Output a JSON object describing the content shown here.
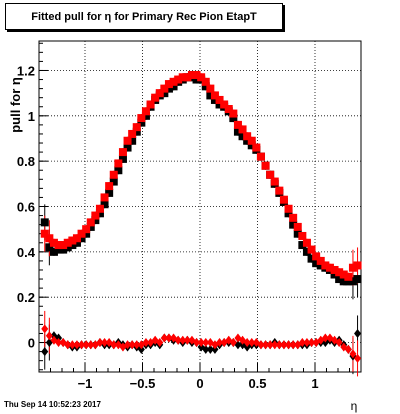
{
  "title": "Fitted pull for  η for Primary Rec Pion EtapT",
  "footer": "Thu Sep 14 10:52:23 2017",
  "chart_data": {
    "type": "scatter",
    "title": "Fitted pull for  η for Primary Rec Pion EtapT",
    "xlabel": "η",
    "ylabel": "pull for  η",
    "xlim": [
      -1.4,
      1.4
    ],
    "ylim": [
      -0.13,
      1.33
    ],
    "xticks": [
      -1,
      -0.5,
      0,
      0.5,
      1
    ],
    "xtick_labels": [
      "−1",
      "−0.5",
      "0",
      "0.5",
      "1"
    ],
    "yticks": [
      0,
      0.2,
      0.4,
      0.6,
      0.8,
      1,
      1.2
    ],
    "ytick_labels": [
      "0",
      "0.2",
      "0.4",
      "0.6",
      "0.8",
      "1",
      "1.2"
    ],
    "grid": true,
    "legend": "none",
    "x": [
      -1.35,
      -1.31,
      -1.27,
      -1.23,
      -1.19,
      -1.15,
      -1.11,
      -1.07,
      -1.03,
      -0.99,
      -0.95,
      -0.91,
      -0.87,
      -0.83,
      -0.79,
      -0.75,
      -0.71,
      -0.67,
      -0.63,
      -0.59,
      -0.55,
      -0.51,
      -0.47,
      -0.43,
      -0.39,
      -0.35,
      -0.31,
      -0.27,
      -0.23,
      -0.19,
      -0.15,
      -0.11,
      -0.07,
      -0.03,
      0.01,
      0.05,
      0.09,
      0.13,
      0.17,
      0.21,
      0.25,
      0.29,
      0.33,
      0.37,
      0.41,
      0.45,
      0.49,
      0.53,
      0.57,
      0.61,
      0.65,
      0.69,
      0.73,
      0.77,
      0.81,
      0.85,
      0.89,
      0.93,
      0.97,
      1.01,
      1.05,
      1.09,
      1.13,
      1.17,
      1.21,
      1.25,
      1.29,
      1.33,
      1.37
    ],
    "series": [
      {
        "color": "#000000",
        "marker": "square",
        "values": [
          0.53,
          0.42,
          0.4,
          0.41,
          0.41,
          0.42,
          0.43,
          0.44,
          0.46,
          0.48,
          0.51,
          0.54,
          0.57,
          0.61,
          0.66,
          0.71,
          0.76,
          0.81,
          0.86,
          0.89,
          0.93,
          0.97,
          1.0,
          1.04,
          1.07,
          1.09,
          1.1,
          1.12,
          1.13,
          1.15,
          1.16,
          1.17,
          1.17,
          1.16,
          1.16,
          1.13,
          1.09,
          1.07,
          1.05,
          1.04,
          1.02,
          0.99,
          0.93,
          0.91,
          0.89,
          0.87,
          0.85,
          0.82,
          0.78,
          0.74,
          0.7,
          0.66,
          0.62,
          0.57,
          0.52,
          0.48,
          0.43,
          0.4,
          0.37,
          0.35,
          0.34,
          0.33,
          0.32,
          0.3,
          0.28,
          0.27,
          0.27,
          0.27,
          0.28
        ]
      },
      {
        "color": "#ff0000",
        "marker": "square",
        "values": [
          0.48,
          0.46,
          0.44,
          0.43,
          0.43,
          0.44,
          0.45,
          0.46,
          0.48,
          0.5,
          0.53,
          0.56,
          0.59,
          0.64,
          0.69,
          0.74,
          0.79,
          0.84,
          0.89,
          0.92,
          0.95,
          0.99,
          1.02,
          1.05,
          1.08,
          1.1,
          1.12,
          1.14,
          1.15,
          1.16,
          1.17,
          1.17,
          1.18,
          1.18,
          1.17,
          1.15,
          1.12,
          1.09,
          1.07,
          1.05,
          1.03,
          1.01,
          0.96,
          0.94,
          0.91,
          0.89,
          0.86,
          0.82,
          0.78,
          0.74,
          0.71,
          0.67,
          0.63,
          0.59,
          0.55,
          0.51,
          0.47,
          0.44,
          0.41,
          0.38,
          0.36,
          0.34,
          0.33,
          0.32,
          0.31,
          0.3,
          0.29,
          0.33,
          0.34
        ]
      },
      {
        "color": "#000000",
        "marker": "diamond",
        "values": [
          -0.04,
          0.0,
          0.03,
          0.02,
          0.0,
          -0.01,
          -0.02,
          -0.02,
          -0.01,
          -0.01,
          -0.01,
          -0.01,
          0.0,
          -0.01,
          -0.01,
          -0.01,
          0.0,
          -0.01,
          -0.02,
          -0.01,
          -0.02,
          -0.03,
          -0.01,
          -0.01,
          0.0,
          -0.01,
          0.02,
          0.02,
          0.01,
          0.01,
          0.0,
          0.01,
          0.0,
          0.0,
          -0.02,
          -0.03,
          -0.03,
          -0.03,
          -0.01,
          0.0,
          0.0,
          0.0,
          -0.01,
          -0.01,
          -0.02,
          -0.01,
          -0.01,
          -0.01,
          -0.01,
          -0.01,
          0.0,
          -0.01,
          -0.01,
          -0.01,
          -0.01,
          -0.01,
          -0.01,
          -0.01,
          0.0,
          0.0,
          0.0,
          0.0,
          0.01,
          0.0,
          0.01,
          -0.01,
          -0.03,
          -0.06,
          0.04
        ]
      },
      {
        "color": "#ff0000",
        "marker": "diamond",
        "values": [
          0.06,
          0.03,
          0.01,
          0.0,
          0.0,
          -0.01,
          -0.01,
          -0.01,
          -0.01,
          -0.01,
          -0.01,
          -0.01,
          0.0,
          0.0,
          0.0,
          -0.01,
          -0.01,
          -0.02,
          -0.01,
          -0.01,
          -0.01,
          -0.01,
          0.0,
          0.0,
          0.01,
          0.0,
          0.02,
          0.02,
          0.02,
          0.01,
          0.01,
          0.01,
          0.01,
          0.0,
          0.0,
          0.0,
          0.0,
          -0.01,
          0.0,
          0.0,
          0.01,
          0.0,
          0.02,
          0.01,
          0.0,
          0.0,
          0.0,
          -0.01,
          -0.01,
          -0.01,
          -0.01,
          -0.01,
          -0.01,
          -0.01,
          -0.01,
          -0.01,
          0.0,
          0.0,
          0.0,
          0.0,
          0.01,
          0.02,
          0.02,
          0.01,
          0.0,
          -0.02,
          -0.03,
          -0.05,
          -0.07
        ]
      }
    ]
  }
}
